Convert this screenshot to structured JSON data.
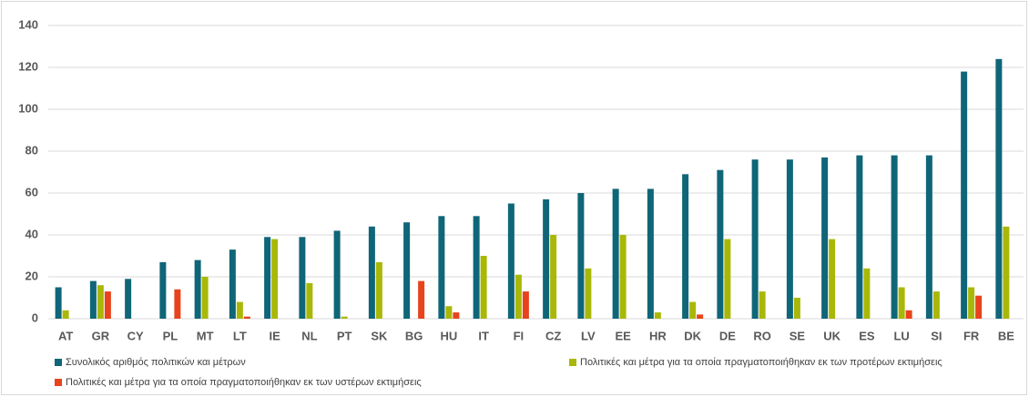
{
  "chart_data": {
    "type": "bar",
    "categories": [
      "AT",
      "GR",
      "CY",
      "PL",
      "MT",
      "LT",
      "IE",
      "NL",
      "PT",
      "SK",
      "BG",
      "HU",
      "IT",
      "FI",
      "CZ",
      "LV",
      "EE",
      "HR",
      "DK",
      "DE",
      "RO",
      "SE",
      "UK",
      "ES",
      "LU",
      "SI",
      "FR",
      "BE"
    ],
    "series": [
      {
        "name": "Συνολικός αριθμός πολιτικών και μέτρων",
        "color": "#0f6678",
        "values": [
          15,
          18,
          19,
          27,
          28,
          33,
          39,
          39,
          42,
          44,
          46,
          49,
          49,
          55,
          57,
          60,
          62,
          62,
          69,
          71,
          76,
          76,
          77,
          78,
          78,
          78,
          118,
          124
        ]
      },
      {
        "name": "Πολιτικές και μέτρα για τα οποία πραγματοποιήθηκαν εκ των προτέρων εκτιμήσεις",
        "color": "#a9b808",
        "values": [
          4,
          16,
          0,
          0,
          20,
          8,
          38,
          17,
          1,
          27,
          0,
          6,
          30,
          21,
          40,
          24,
          40,
          3,
          8,
          38,
          13,
          10,
          38,
          24,
          15,
          13,
          15,
          44
        ]
      },
      {
        "name": "Πολιτικές και μέτρα για τα οποία πραγματοποιήθηκαν εκ των υστέρων εκτιμήσεις",
        "color": "#e8431c",
        "values": [
          0,
          13,
          0,
          14,
          0,
          1,
          0,
          0,
          0,
          0,
          18,
          3,
          0,
          13,
          0,
          0,
          0,
          0,
          2,
          0,
          0,
          0,
          0,
          0,
          4,
          0,
          11,
          0
        ]
      }
    ],
    "ylim": [
      0,
      140
    ],
    "yticks": [
      0,
      20,
      40,
      60,
      80,
      100,
      120,
      140
    ],
    "grid": true,
    "legend": "bottom"
  }
}
